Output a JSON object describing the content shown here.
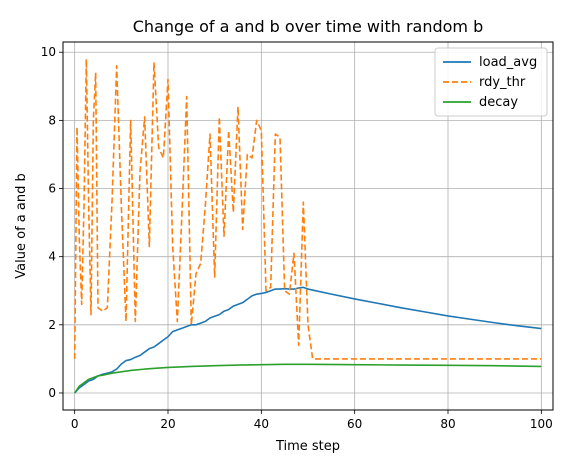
{
  "chart_data": {
    "type": "line",
    "title": "Change of a and b over time with random b",
    "xlabel": "Time step",
    "ylabel": "Value of a and b",
    "xlim": [
      -2.5,
      102.5
    ],
    "ylim": [
      -0.5,
      10.3
    ],
    "xticks": [
      0,
      20,
      40,
      60,
      80,
      100
    ],
    "yticks": [
      0,
      2,
      4,
      6,
      8,
      10
    ],
    "grid": true,
    "legend_position": "top-right",
    "series": [
      {
        "name": "load_avg",
        "color": "#1f77b4",
        "style": "solid",
        "x": [
          0,
          1,
          2,
          3,
          4,
          5,
          6,
          7,
          8,
          9,
          10,
          11,
          12,
          13,
          14,
          15,
          16,
          17,
          18,
          19,
          20,
          21,
          22,
          23,
          24,
          25,
          26,
          27,
          28,
          29,
          30,
          31,
          32,
          33,
          34,
          35,
          36,
          37,
          38,
          39,
          40,
          41,
          42,
          43,
          44,
          45,
          46,
          47,
          48,
          49,
          50,
          55,
          60,
          65,
          70,
          75,
          80,
          85,
          90,
          95,
          100
        ],
        "y": [
          0.0,
          0.15,
          0.25,
          0.35,
          0.4,
          0.5,
          0.55,
          0.58,
          0.62,
          0.7,
          0.85,
          0.95,
          0.98,
          1.05,
          1.1,
          1.2,
          1.3,
          1.35,
          1.45,
          1.55,
          1.65,
          1.8,
          1.85,
          1.9,
          1.95,
          2.0,
          2.0,
          2.05,
          2.1,
          2.2,
          2.25,
          2.3,
          2.4,
          2.45,
          2.55,
          2.6,
          2.65,
          2.75,
          2.85,
          2.9,
          2.92,
          2.95,
          3.0,
          3.05,
          3.05,
          3.06,
          3.05,
          3.05,
          3.08,
          3.1,
          3.05,
          2.9,
          2.76,
          2.63,
          2.5,
          2.38,
          2.26,
          2.16,
          2.06,
          1.97,
          1.89
        ]
      },
      {
        "name": "rdy_thr",
        "color": "#ff7f0e",
        "style": "dashed",
        "x": [
          0,
          0.5,
          1,
          1.5,
          2,
          2.5,
          3,
          3.5,
          4,
          4.5,
          5,
          6,
          7,
          8,
          9,
          10,
          11,
          12,
          13,
          14,
          15,
          16,
          17,
          18,
          19,
          20,
          21,
          22,
          23,
          24,
          25,
          26,
          27,
          28,
          29,
          30,
          31,
          32,
          33,
          34,
          35,
          36,
          37,
          38,
          39,
          40,
          41,
          42,
          43,
          44,
          45,
          46,
          47,
          48,
          49,
          50,
          51,
          52,
          55,
          60,
          70,
          80,
          90,
          100
        ],
        "y": [
          1.0,
          7.8,
          4.5,
          2.6,
          5.5,
          9.8,
          5.5,
          2.3,
          8.0,
          9.4,
          2.5,
          2.4,
          2.5,
          5.6,
          9.6,
          5.5,
          2.1,
          8.0,
          2.1,
          6.5,
          8.1,
          4.3,
          9.7,
          7.2,
          6.9,
          9.2,
          4.3,
          2.1,
          5.3,
          8.7,
          2.0,
          3.5,
          3.8,
          5.5,
          7.6,
          3.4,
          8.1,
          4.6,
          7.7,
          5.3,
          8.4,
          4.8,
          7.0,
          6.9,
          8.0,
          7.7,
          3.0,
          3.1,
          7.6,
          7.5,
          3.0,
          2.9,
          4.1,
          1.4,
          5.6,
          2.0,
          1.0,
          1.0,
          1.0,
          1.0,
          1.0,
          1.0,
          1.0,
          1.0
        ]
      },
      {
        "name": "decay",
        "color": "#2ca02c",
        "style": "solid",
        "x": [
          0,
          1,
          2,
          3,
          4,
          5,
          6,
          7,
          8,
          10,
          12,
          15,
          18,
          20,
          25,
          30,
          35,
          40,
          45,
          50,
          60,
          70,
          80,
          90,
          100
        ],
        "y": [
          0.0,
          0.2,
          0.3,
          0.4,
          0.45,
          0.5,
          0.52,
          0.55,
          0.58,
          0.62,
          0.66,
          0.7,
          0.73,
          0.75,
          0.78,
          0.8,
          0.82,
          0.83,
          0.84,
          0.84,
          0.83,
          0.82,
          0.81,
          0.8,
          0.78
        ]
      }
    ]
  }
}
